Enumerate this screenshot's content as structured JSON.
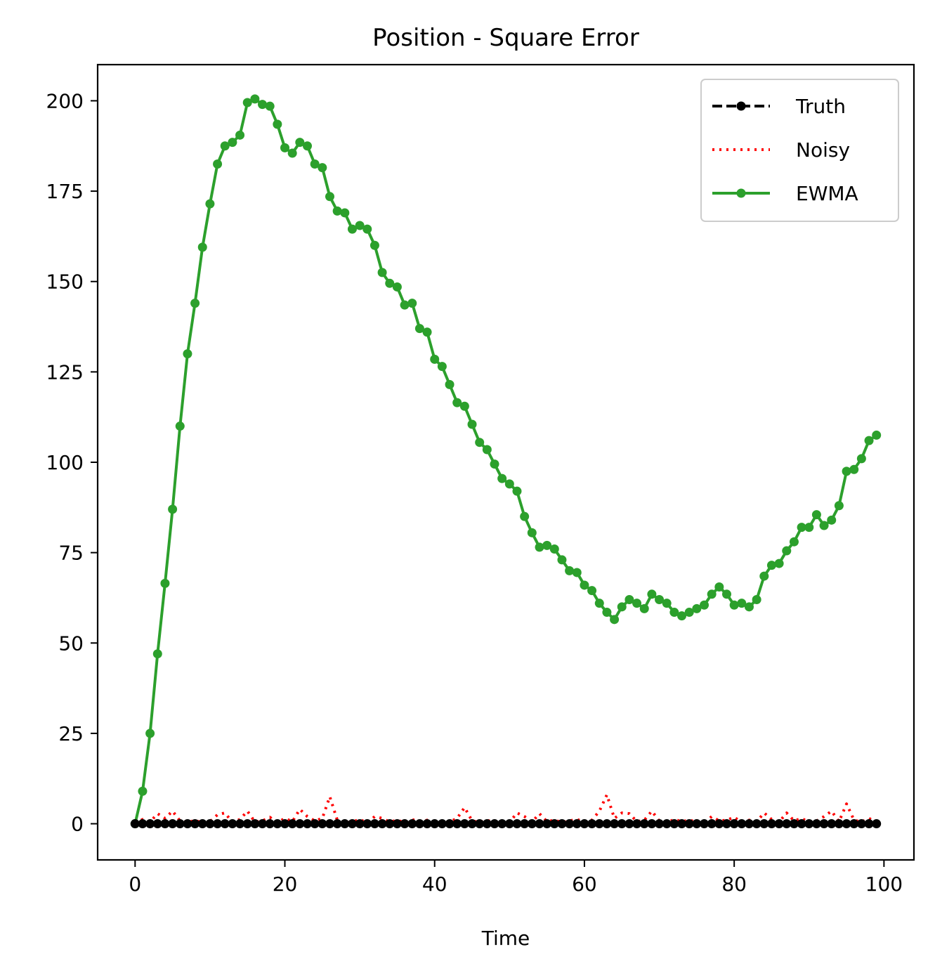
{
  "chart_data": {
    "type": "line",
    "title": "Position - Square Error",
    "xlabel": "Time",
    "ylabel": "",
    "xlim": [
      -5,
      104
    ],
    "ylim": [
      -10,
      210
    ],
    "xticks": [
      0,
      20,
      40,
      60,
      80,
      100
    ],
    "yticks": [
      0,
      25,
      50,
      75,
      100,
      125,
      150,
      175,
      200
    ],
    "legend_position": "top-right",
    "grid": false,
    "series": [
      {
        "name": "Truth",
        "color": "#000000",
        "style": "dashed",
        "marker": "circle",
        "values": [
          0,
          0,
          0,
          0,
          0,
          0,
          0,
          0,
          0,
          0,
          0,
          0,
          0,
          0,
          0,
          0,
          0,
          0,
          0,
          0,
          0,
          0,
          0,
          0,
          0,
          0,
          0,
          0,
          0,
          0,
          0,
          0,
          0,
          0,
          0,
          0,
          0,
          0,
          0,
          0,
          0,
          0,
          0,
          0,
          0,
          0,
          0,
          0,
          0,
          0,
          0,
          0,
          0,
          0,
          0,
          0,
          0,
          0,
          0,
          0,
          0,
          0,
          0,
          0,
          0,
          0,
          0,
          0,
          0,
          0,
          0,
          0,
          0,
          0,
          0,
          0,
          0,
          0,
          0,
          0,
          0,
          0,
          0,
          0,
          0,
          0,
          0,
          0,
          0,
          0,
          0,
          0,
          0,
          0,
          0,
          0,
          0,
          0,
          0,
          0
        ]
      },
      {
        "name": "Noisy",
        "color": "#ff0000",
        "style": "dotted",
        "marker": "none",
        "values": [
          0,
          1.2,
          0.5,
          2.8,
          1.5,
          3.5,
          0.8,
          0.3,
          1.0,
          0.2,
          0.6,
          2.5,
          3.0,
          0.4,
          1.2,
          3.5,
          0.5,
          0.8,
          1.8,
          0.3,
          1.5,
          0.6,
          4.0,
          2.0,
          0.8,
          1.5,
          7.5,
          1.0,
          0.3,
          0.5,
          1.2,
          0.2,
          2.0,
          1.5,
          0.5,
          1.0,
          0.3,
          1.2,
          0.4,
          1.0,
          0.6,
          0.3,
          0.5,
          1.5,
          4.5,
          0.8,
          0.4,
          1.0,
          0.3,
          0.6,
          0.4,
          3.0,
          2.0,
          0.5,
          2.8,
          0.6,
          1.0,
          0.4,
          0.8,
          1.2,
          0.5,
          1.0,
          3.5,
          8.0,
          1.5,
          3.0,
          2.8,
          0.6,
          1.0,
          3.5,
          0.8,
          0.3,
          1.2,
          0.6,
          1.0,
          0.5,
          0.3,
          2.0,
          0.8,
          1.0,
          1.8,
          0.4,
          1.0,
          0.6,
          3.0,
          1.2,
          0.5,
          3.0,
          0.8,
          1.5,
          0.4,
          0.8,
          2.0,
          3.5,
          0.6,
          5.5,
          1.0,
          0.5,
          1.5,
          0.3
        ]
      },
      {
        "name": "EWMA",
        "color": "#2ca02c",
        "style": "solid",
        "marker": "circle",
        "values": [
          0,
          9,
          25,
          47,
          66.5,
          87,
          110,
          130,
          144,
          159.5,
          171.5,
          182.5,
          187.5,
          188.5,
          190.5,
          199.5,
          200.5,
          199,
          198.5,
          193.5,
          187,
          185.5,
          188.5,
          187.5,
          182.5,
          181.5,
          173.5,
          169.5,
          169,
          164.5,
          165.5,
          164.5,
          160,
          152.5,
          149.5,
          148.5,
          143.5,
          144,
          137,
          136,
          128.5,
          126.5,
          121.5,
          116.5,
          115.5,
          110.5,
          105.5,
          103.5,
          99.5,
          95.5,
          94,
          92,
          85,
          80.5,
          76.5,
          77,
          76,
          73,
          70,
          69.5,
          66,
          64.5,
          61,
          58.5,
          56.5,
          60,
          62,
          61,
          59.5,
          63.5,
          62,
          61,
          58.5,
          57.5,
          58.5,
          59.5,
          60.5,
          63.5,
          65.5,
          63.5,
          60.5,
          61,
          60,
          62,
          68.5,
          71.5,
          72,
          75.5,
          78,
          82,
          82,
          85.5,
          82.5,
          84,
          88,
          97.5,
          98,
          101,
          106,
          107.5
        ]
      }
    ]
  }
}
